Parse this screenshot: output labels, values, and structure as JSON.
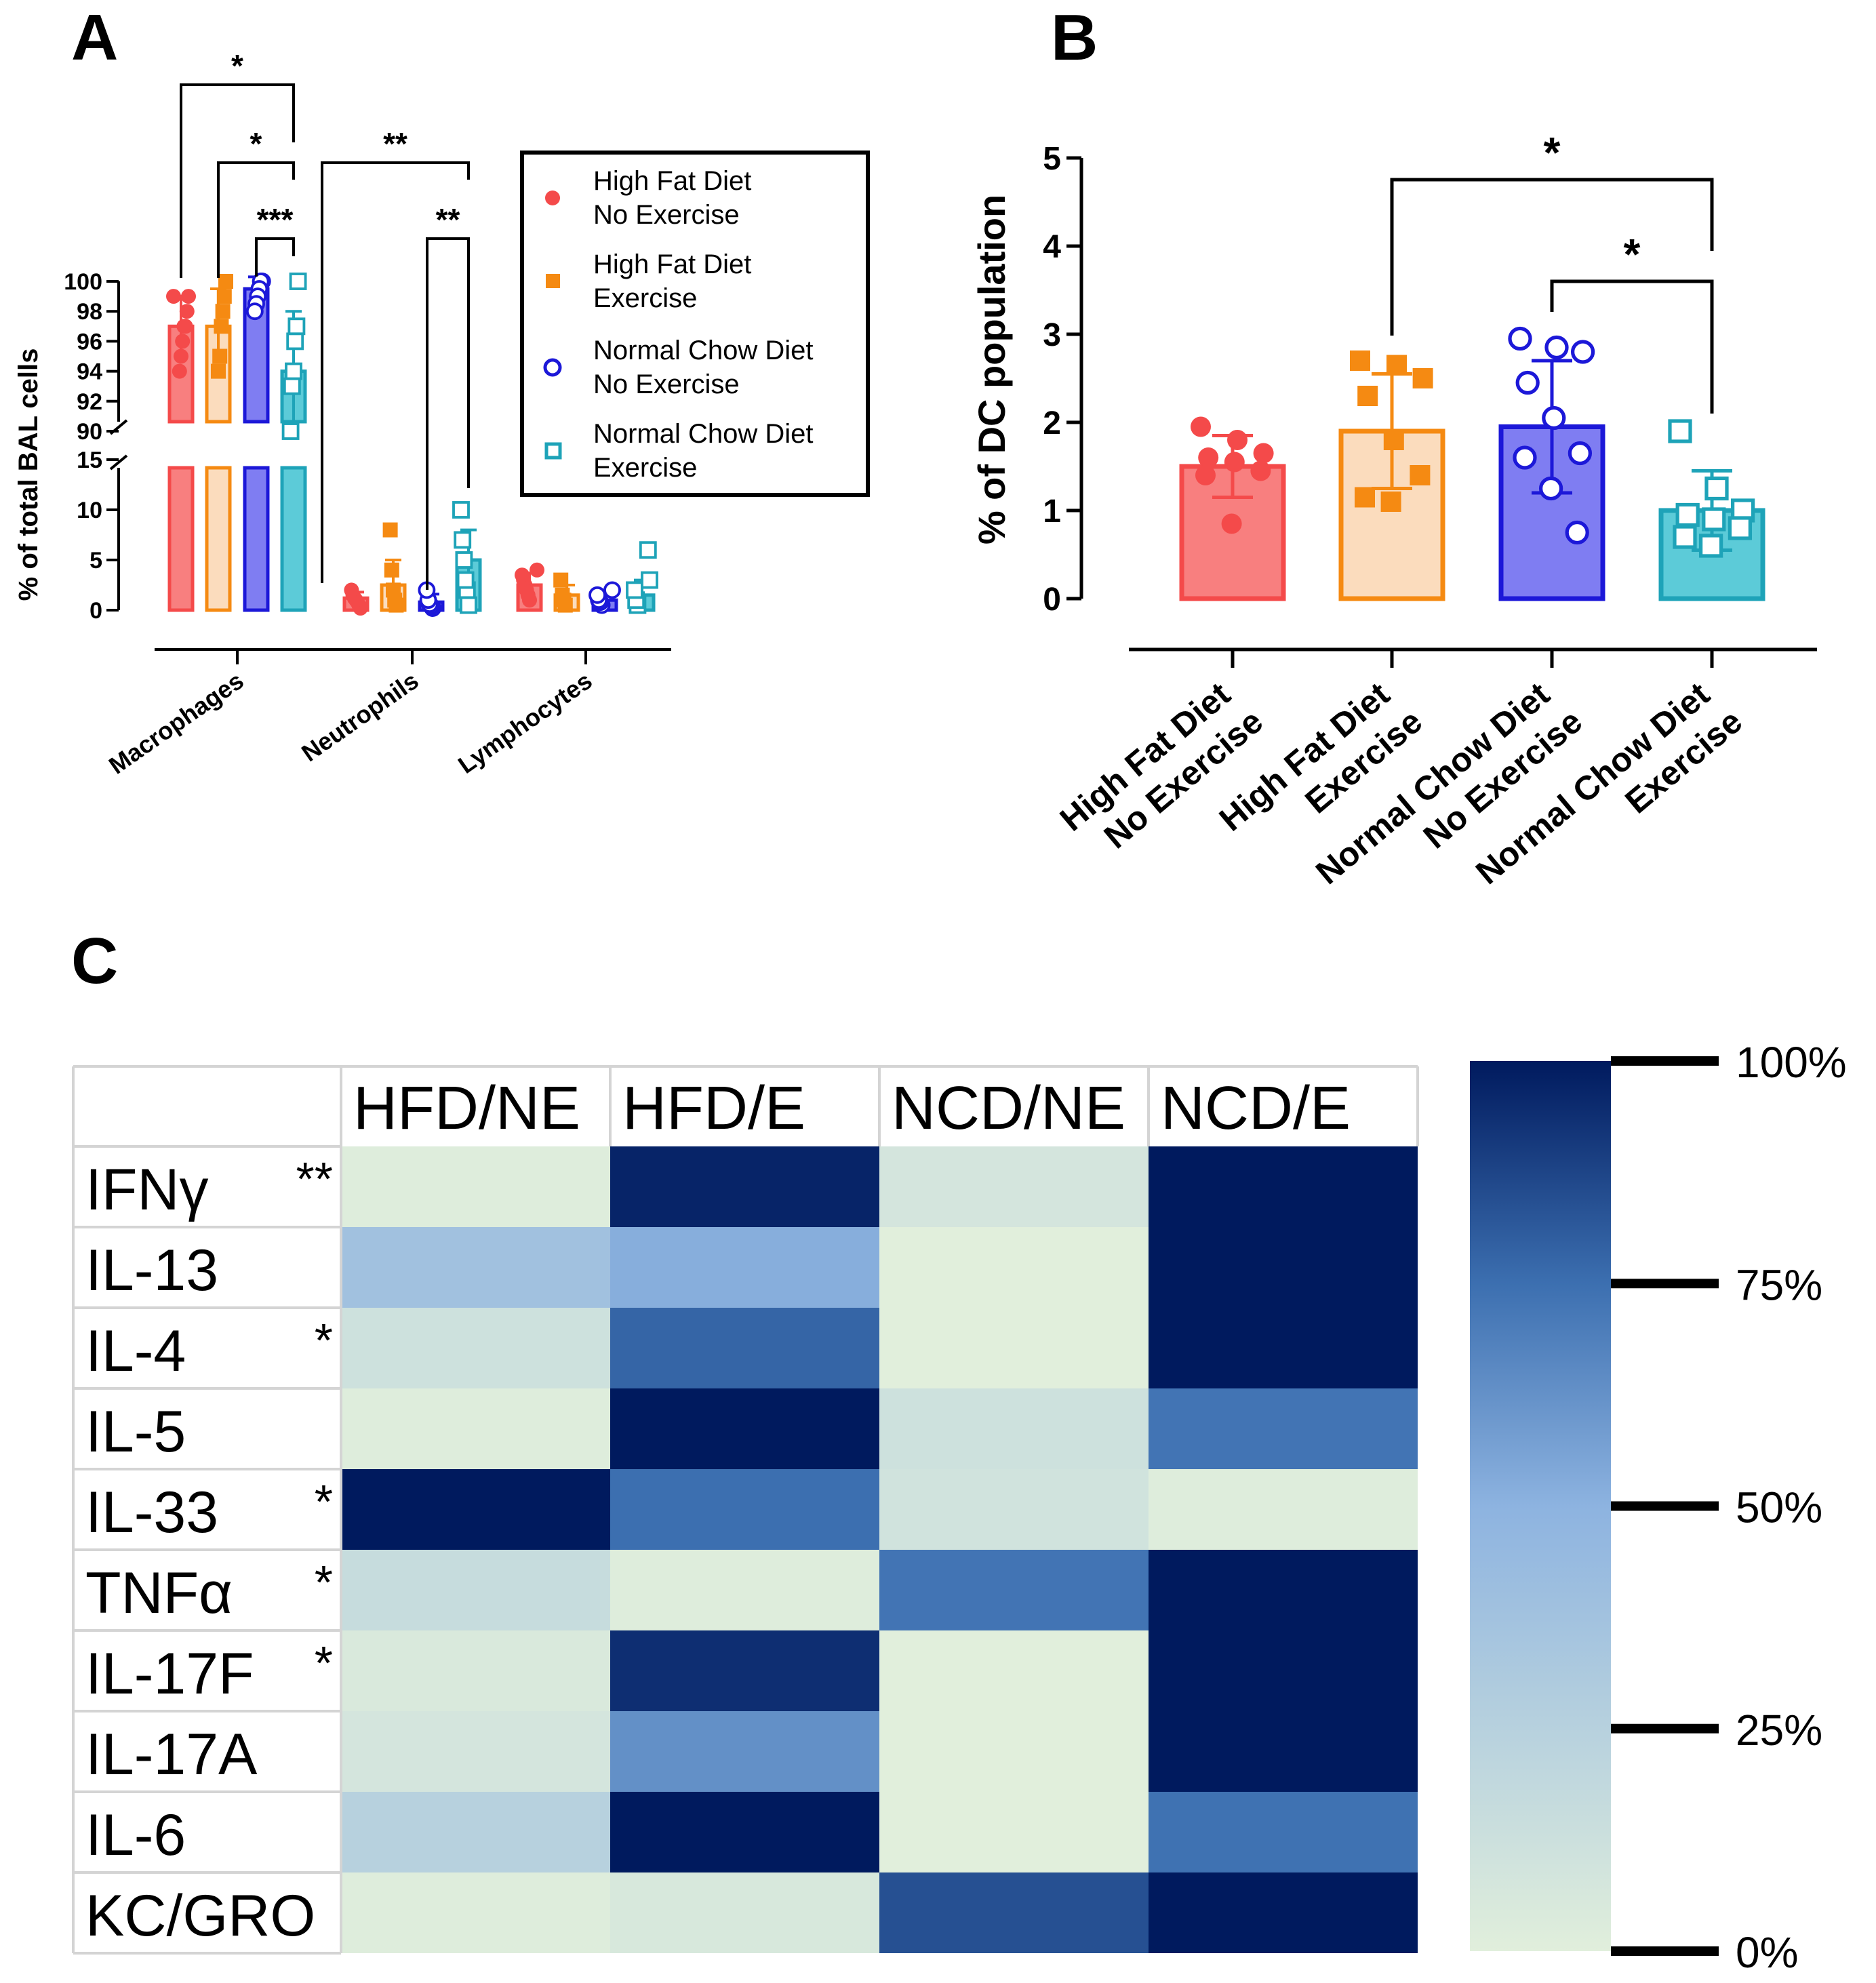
{
  "panels": {
    "a": "A",
    "b": "B",
    "c": "C"
  },
  "groups": [
    {
      "name": "High Fat Diet\nNo Exercise",
      "legend": [
        "High Fat Diet",
        "No Exercise"
      ],
      "marker": "filled-circle",
      "color": "#f44a4a",
      "fill": "#f87f7f"
    },
    {
      "name": "High Fat Diet\nExercise",
      "legend": [
        "High Fat Diet",
        "Exercise"
      ],
      "marker": "filled-square",
      "color": "#f58a12",
      "fill": "#fbdcbd"
    },
    {
      "name": "Normal Chow Diet\nNo Exercise",
      "legend": [
        "Normal Chow Diet",
        "No Exercise"
      ],
      "marker": "open-circle",
      "color": "#1c18d8",
      "fill": "#7f7df2"
    },
    {
      "name": "Normal Chow Diet\nExercise",
      "legend": [
        "Normal Chow Diet",
        "Exercise"
      ],
      "marker": "open-square",
      "color": "#1ea3b8",
      "fill": "#5ccbd8"
    }
  ],
  "chart_data": [
    {
      "id": "A",
      "type": "bar",
      "ylabel": "% of total BAL cells",
      "categories": [
        "Macrophages",
        "Neutrophils",
        "Lymphocytes"
      ],
      "y_lower_ticks": [
        "0",
        "5",
        "10",
        "15"
      ],
      "y_upper_ticks": [
        "90",
        "92",
        "94",
        "96",
        "98",
        "100"
      ],
      "y_break": [
        15,
        90
      ],
      "series": [
        {
          "name": "High Fat Diet No Exercise",
          "values": [
            97,
            1.2,
            2.5
          ],
          "errors": [
            2,
            0.6,
            1.2
          ],
          "points": [
            [
              99,
              99,
              98,
              97,
              97,
              96,
              95,
              94
            ],
            [
              0.2,
              0.5,
              0.8,
              1,
              1.2,
              1.5,
              2
            ],
            [
              1,
              1.5,
              2,
              2.5,
              3,
              3.5,
              4
            ]
          ]
        },
        {
          "name": "High Fat Diet Exercise",
          "values": [
            97,
            2.5,
            1.5
          ],
          "errors": [
            2.5,
            2.5,
            1
          ],
          "points": [
            [
              100,
              99,
              98,
              97,
              95,
              94
            ],
            [
              0.5,
              1,
              2,
              4,
              8
            ],
            [
              0.5,
              1,
              1.5,
              3
            ]
          ]
        },
        {
          "name": "Normal Chow Diet No Exercise",
          "values": [
            99.5,
            0.8,
            1
          ],
          "errors": [
            0.8,
            0.8,
            0.5
          ],
          "points": [
            [
              100,
              100,
              99.5,
              99,
              98.5,
              98
            ],
            [
              0.2,
              0.4,
              0.6,
              1,
              2
            ],
            [
              0.5,
              0.8,
              1,
              1.5,
              2
            ]
          ]
        },
        {
          "name": "Normal Chow Diet Exercise",
          "values": [
            94,
            5,
            1.5
          ],
          "errors": [
            4,
            3,
            1.5
          ],
          "points": [
            [
              100,
              97,
              96,
              94,
              93,
              90
            ],
            [
              0.5,
              2,
              3,
              5,
              7,
              10
            ],
            [
              0.5,
              1,
              2,
              3,
              6
            ]
          ]
        }
      ],
      "significance": [
        {
          "label": "*",
          "from": 0,
          "to": 3
        },
        {
          "label": "*",
          "from": 1,
          "to": 3
        },
        {
          "label": "***",
          "from": 2,
          "to": 3
        },
        {
          "label": "**",
          "category": 1,
          "from": 0,
          "to": 3
        },
        {
          "label": "**",
          "category": 1,
          "from": 2,
          "to": 3
        }
      ]
    },
    {
      "id": "B",
      "type": "bar",
      "ylabel": "% of DC population",
      "ylim": [
        0,
        5
      ],
      "ticks": [
        "0",
        "1",
        "2",
        "3",
        "4",
        "5"
      ],
      "categories": [
        "High Fat Diet\nNo Exercise",
        "High Fat Diet\nExercise",
        "Normal Chow Diet\nNo Exercise",
        "Normal Chow Diet\nExercise"
      ],
      "values": [
        1.5,
        1.9,
        1.95,
        1.0
      ],
      "errors": [
        0.35,
        0.65,
        0.75,
        0.45
      ],
      "points": [
        [
          1.95,
          1.8,
          1.65,
          1.6,
          1.55,
          1.45,
          1.4,
          0.85
        ],
        [
          2.7,
          2.65,
          2.5,
          2.3,
          1.8,
          1.4,
          1.15,
          1.1
        ],
        [
          2.95,
          2.85,
          2.8,
          2.45,
          2.05,
          1.65,
          1.6,
          1.25,
          0.75
        ],
        [
          1.9,
          1.25,
          1.0,
          0.95,
          0.9,
          0.8,
          0.7,
          0.6
        ]
      ],
      "significance": [
        {
          "label": "*",
          "from": 1,
          "to": 3
        },
        {
          "label": "*",
          "from": 2,
          "to": 3
        }
      ]
    },
    {
      "id": "C",
      "type": "heatmap",
      "columns": [
        "HFD/NE",
        "HFD/E",
        "NCD/NE",
        "NCD/E"
      ],
      "rows": [
        {
          "label": "IFNγ",
          "sig": "**",
          "values": [
            0.02,
            0.97,
            0.08,
            1.0
          ]
        },
        {
          "label": "IL-13",
          "sig": "",
          "values": [
            0.38,
            0.52,
            0.0,
            1.0
          ]
        },
        {
          "label": "IL-4",
          "sig": "*",
          "values": [
            0.12,
            0.78,
            0.0,
            1.0
          ]
        },
        {
          "label": "IL-5",
          "sig": "",
          "values": [
            0.02,
            1.0,
            0.12,
            0.73
          ]
        },
        {
          "label": "IL-33",
          "sig": "*",
          "values": [
            1.0,
            0.75,
            0.1,
            0.02
          ]
        },
        {
          "label": "TNFα",
          "sig": "*",
          "values": [
            0.16,
            0.02,
            0.73,
            1.0
          ]
        },
        {
          "label": "IL-17F",
          "sig": "*",
          "values": [
            0.05,
            0.94,
            0.0,
            1.0
          ]
        },
        {
          "label": "IL-17A",
          "sig": "",
          "values": [
            0.08,
            0.63,
            0.0,
            1.0
          ]
        },
        {
          "label": "IL-6",
          "sig": "",
          "values": [
            0.25,
            1.0,
            0.0,
            0.74
          ]
        },
        {
          "label": "KC/GRO",
          "sig": "",
          "values": [
            0.02,
            0.06,
            0.84,
            1.0
          ]
        }
      ],
      "colorbar_ticks": [
        "100%",
        "75%",
        "50%",
        "25%",
        "0%"
      ],
      "color_stops": [
        "#e1efdc",
        "#8db3e0",
        "#3c6fb0",
        "#001a5e"
      ]
    }
  ]
}
